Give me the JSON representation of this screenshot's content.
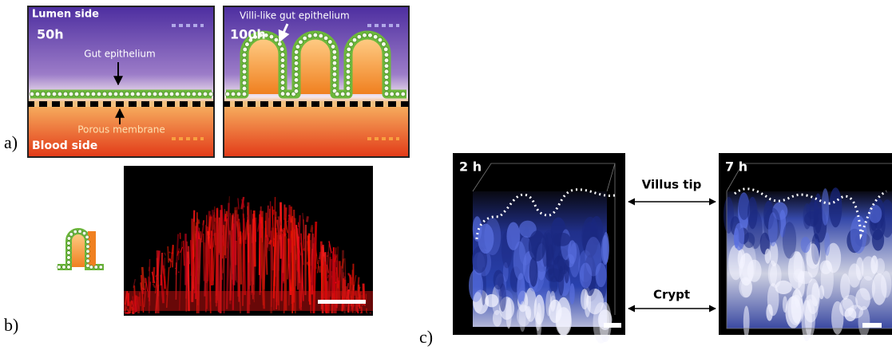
{
  "panels": {
    "a": {
      "label": "a)",
      "left": {
        "top_label": "Lumen side",
        "time": "50h",
        "epithelium_label": "Gut epithelium",
        "membrane_label": "Porous membrane",
        "bottom_label": "Blood side"
      },
      "right": {
        "epithelium_label": "Villi-like gut epithelium",
        "time": "100h"
      }
    },
    "b": {
      "label": "b)"
    },
    "c": {
      "label": "c)",
      "left_time": "2 h",
      "right_time": "7 h",
      "tip_label": "Villus tip",
      "crypt_label": "Crypt"
    }
  }
}
